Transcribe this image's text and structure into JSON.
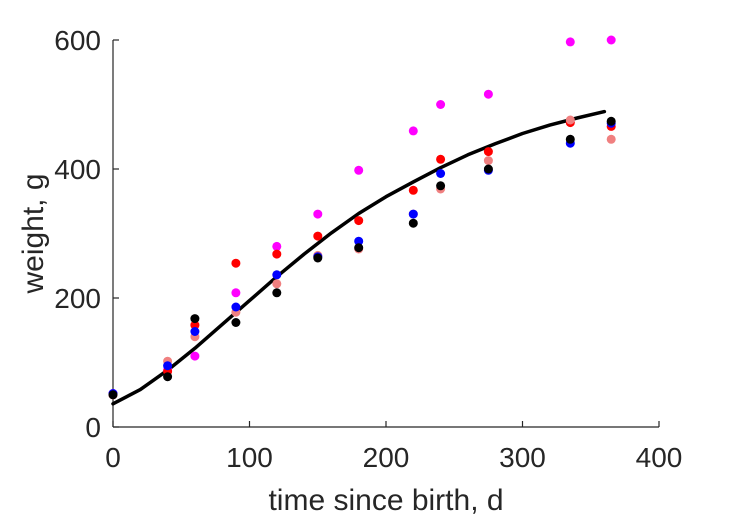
{
  "chart_data": {
    "type": "scatter",
    "title": "",
    "xlabel": "time since birth, d",
    "ylabel": "weight, g",
    "xlim": [
      0,
      400
    ],
    "ylim": [
      0,
      600
    ],
    "xticks": [
      0,
      100,
      200,
      300,
      400
    ],
    "yticks": [
      0,
      200,
      400,
      600
    ],
    "grid": false,
    "series": [
      {
        "color": "#ff00ff",
        "x": [
          0,
          40,
          60,
          90,
          120,
          150,
          180,
          220,
          240,
          275,
          335,
          365
        ],
        "y": [
          52,
          88,
          110,
          208,
          280,
          330,
          398,
          459,
          500,
          516,
          597,
          600
        ]
      },
      {
        "color": "#ff0000",
        "x": [
          0,
          40,
          60,
          90,
          120,
          150,
          180,
          220,
          240,
          275,
          335,
          365
        ],
        "y": [
          50,
          86,
          158,
          254,
          268,
          296,
          320,
          367,
          415,
          427,
          472,
          466
        ]
      },
      {
        "color": "#f08080",
        "x": [
          0,
          40,
          60,
          90,
          120,
          150,
          180,
          220,
          240,
          275,
          335,
          365
        ],
        "y": [
          50,
          102,
          140,
          178,
          222,
          266,
          276,
          330,
          369,
          413,
          476,
          446
        ]
      },
      {
        "color": "#0000ff",
        "x": [
          0,
          40,
          60,
          90,
          120,
          150,
          180,
          220,
          240,
          275,
          335,
          365
        ],
        "y": [
          52,
          95,
          148,
          186,
          236,
          264,
          288,
          330,
          393,
          398,
          440,
          471
        ]
      },
      {
        "color": "#000000",
        "x": [
          0,
          40,
          60,
          90,
          120,
          150,
          180,
          220,
          240,
          275,
          335,
          365
        ],
        "y": [
          50,
          78,
          168,
          162,
          208,
          262,
          278,
          316,
          374,
          400,
          446,
          474
        ]
      }
    ],
    "fit": {
      "color": "#000000",
      "x": [
        0,
        20,
        40,
        60,
        80,
        100,
        120,
        140,
        160,
        180,
        200,
        220,
        240,
        260,
        280,
        300,
        320,
        340,
        360
      ],
      "y": [
        36,
        58,
        88,
        122,
        159,
        196,
        233,
        268,
        301,
        331,
        357,
        380,
        402,
        422,
        439,
        455,
        468,
        479,
        489
      ]
    }
  }
}
